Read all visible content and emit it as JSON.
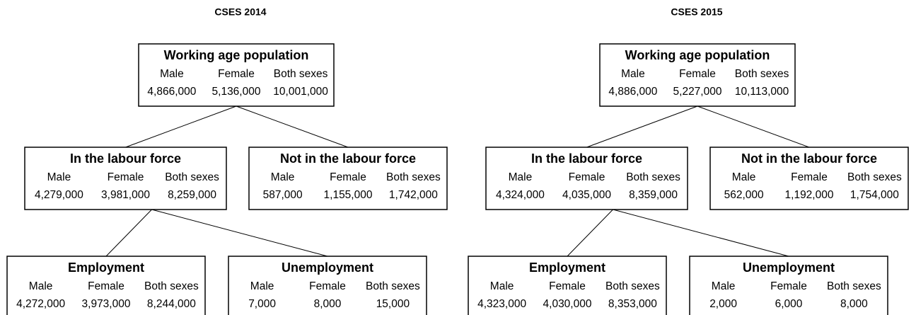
{
  "diagrams": [
    {
      "title": "CSES 2014",
      "nodes": [
        {
          "label": "Working age population",
          "columns": [
            "Male",
            "Female",
            "Both sexes"
          ],
          "values": [
            "4,866,000",
            "5,136,000",
            "10,001,000"
          ]
        },
        {
          "label": "In the labour force",
          "columns": [
            "Male",
            "Female",
            "Both sexes"
          ],
          "values": [
            "4,279,000",
            "3,981,000",
            "8,259,000"
          ]
        },
        {
          "label": "Not in the labour force",
          "columns": [
            "Male",
            "Female",
            "Both sexes"
          ],
          "values": [
            "587,000",
            "1,155,000",
            "1,742,000"
          ]
        },
        {
          "label": "Employment",
          "columns": [
            "Male",
            "Female",
            "Both sexes"
          ],
          "values": [
            "4,272,000",
            "3,973,000",
            "8,244,000"
          ]
        },
        {
          "label": "Unemployment",
          "columns": [
            "Male",
            "Female",
            "Both sexes"
          ],
          "values": [
            "7,000",
            "8,000",
            "15,000"
          ]
        }
      ]
    },
    {
      "title": "CSES 2015",
      "nodes": [
        {
          "label": "Working age population",
          "columns": [
            "Male",
            "Female",
            "Both sexes"
          ],
          "values": [
            "4,886,000",
            "5,227,000",
            "10,113,000"
          ]
        },
        {
          "label": "In the labour force",
          "columns": [
            "Male",
            "Female",
            "Both sexes"
          ],
          "values": [
            "4,324,000",
            "4,035,000",
            "8,359,000"
          ]
        },
        {
          "label": "Not in the labour force",
          "columns": [
            "Male",
            "Female",
            "Both sexes"
          ],
          "values": [
            "562,000",
            "1,192,000",
            "1,754,000"
          ]
        },
        {
          "label": "Employment",
          "columns": [
            "Male",
            "Female",
            "Both sexes"
          ],
          "values": [
            "4,323,000",
            "4,030,000",
            "8,353,000"
          ]
        },
        {
          "label": "Unemployment",
          "columns": [
            "Male",
            "Female",
            "Both sexes"
          ],
          "values": [
            "2,000",
            "6,000",
            "8,000"
          ]
        }
      ]
    }
  ]
}
